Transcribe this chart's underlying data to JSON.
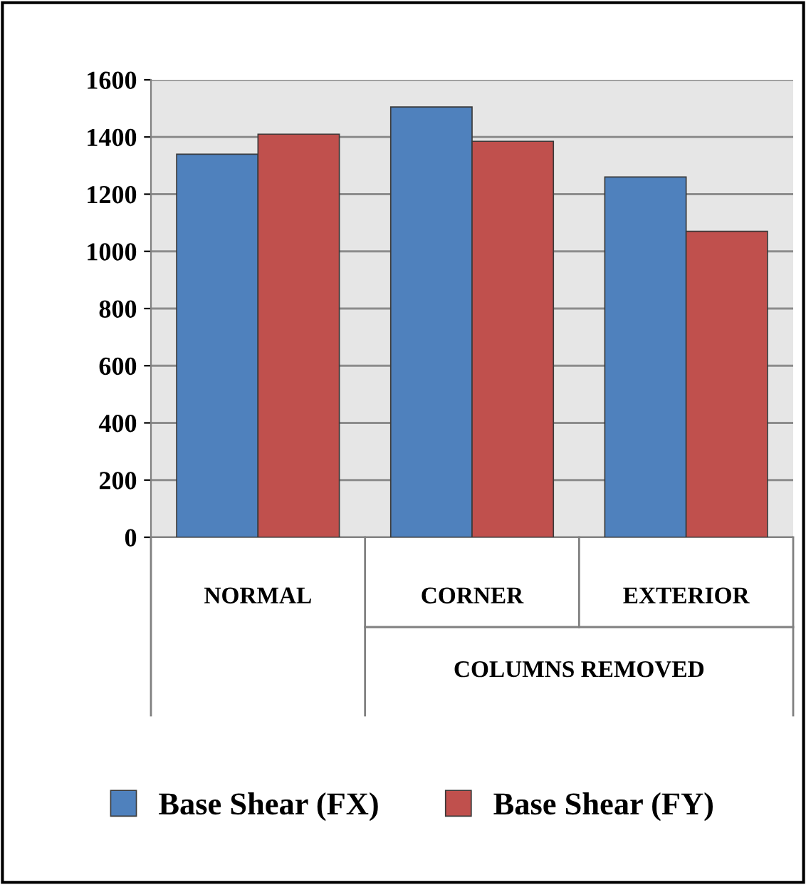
{
  "chart_data": {
    "type": "bar",
    "categories": [
      "NORMAL",
      "CORNER",
      "EXTERIOR"
    ],
    "series": [
      {
        "name": "Base Shear (FX)",
        "color": "#4f81bd",
        "values": [
          1340,
          1505,
          1260
        ]
      },
      {
        "name": "Base Shear (FY)",
        "color": "#c0504d",
        "values": [
          1410,
          1385,
          1070
        ]
      }
    ],
    "ylim": [
      0,
      1600
    ],
    "yticks": [
      0,
      200,
      400,
      600,
      800,
      1000,
      1200,
      1400,
      1600
    ],
    "grid": "y",
    "legend": "bottom",
    "annotations": [
      "COLUMNS REMOVED"
    ]
  }
}
